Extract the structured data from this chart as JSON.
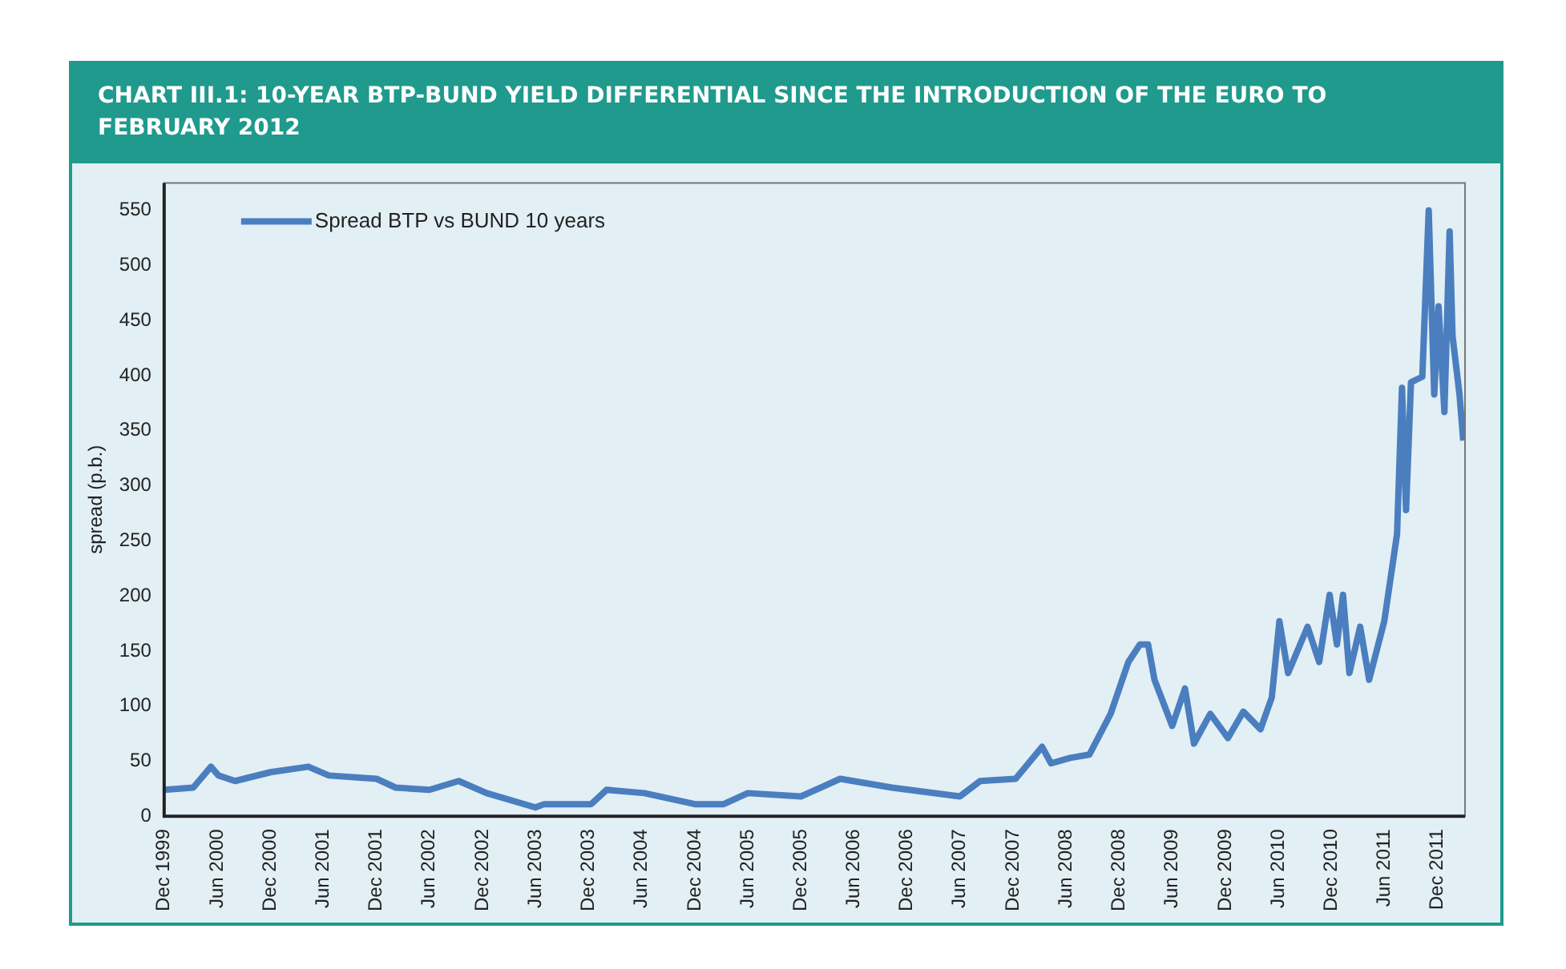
{
  "chart_data": {
    "type": "line",
    "title": "CHART III.1: 10-YEAR BTP-BUND YIELD DIFFERENTIAL SINCE THE INTRODUCTION OF THE EURO TO FEBRUARY 2012",
    "ylabel": "spread (p.b.)",
    "legend": "top left",
    "marker": "none",
    "xlim": [
      "1999-12-01",
      "2012-03-05"
    ],
    "ylim": [
      0,
      575
    ],
    "yticks": [
      0,
      50,
      100,
      150,
      200,
      250,
      300,
      350,
      400,
      450,
      500,
      550
    ],
    "xticks": [
      {
        "value": "1999-12-01",
        "label": "Dec 1999"
      },
      {
        "value": "2000-06-01",
        "label": "Jun 2000"
      },
      {
        "value": "2000-12-01",
        "label": "Dec 2000"
      },
      {
        "value": "2001-06-01",
        "label": "Jun 2001"
      },
      {
        "value": "2001-12-01",
        "label": "Dec 2001"
      },
      {
        "value": "2002-06-01",
        "label": "Jun 2002"
      },
      {
        "value": "2002-12-01",
        "label": "Dec 2002"
      },
      {
        "value": "2003-06-01",
        "label": "Jun 2003"
      },
      {
        "value": "2003-12-01",
        "label": "Dec 2003"
      },
      {
        "value": "2004-06-01",
        "label": "Jun 2004"
      },
      {
        "value": "2004-12-01",
        "label": "Dec 2004"
      },
      {
        "value": "2005-06-01",
        "label": "Jun 2005"
      },
      {
        "value": "2005-12-01",
        "label": "Dec 2005"
      },
      {
        "value": "2006-06-01",
        "label": "Jun 2006"
      },
      {
        "value": "2006-12-01",
        "label": "Dec 2006"
      },
      {
        "value": "2007-06-01",
        "label": "Jun 2007"
      },
      {
        "value": "2007-12-01",
        "label": "Dec 2007"
      },
      {
        "value": "2008-06-01",
        "label": "Jun 2008"
      },
      {
        "value": "2008-12-01",
        "label": "Dec 2008"
      },
      {
        "value": "2009-06-01",
        "label": "Jun 2009"
      },
      {
        "value": "2009-12-01",
        "label": "Dec 2009"
      },
      {
        "value": "2010-06-01",
        "label": "Jun 2010"
      },
      {
        "value": "2010-12-01",
        "label": "Dec 2010"
      },
      {
        "value": "2011-06-01",
        "label": "Jun 2011"
      },
      {
        "value": "2011-12-01",
        "label": "Dec 2011"
      }
    ],
    "series": [
      {
        "name": "Spread BTP vs BUND 10 years",
        "color": "#4a7ebf",
        "x": [
          "1999-12-01",
          "2000-03-10",
          "2000-05-10",
          "2000-06-05",
          "2000-08-01",
          "2000-12-01",
          "2001-04-10",
          "2001-06-20",
          "2001-12-01",
          "2002-02-05",
          "2002-06-01",
          "2002-09-10",
          "2002-12-15",
          "2003-06-01",
          "2003-07-01",
          "2003-12-10",
          "2004-02-01",
          "2004-06-10",
          "2004-12-01",
          "2005-03-10",
          "2005-06-01",
          "2005-12-01",
          "2006-04-15",
          "2006-10-10",
          "2007-06-01",
          "2007-08-10",
          "2007-12-10",
          "2008-03-10",
          "2008-04-10",
          "2008-06-15",
          "2008-08-20",
          "2008-11-01",
          "2009-01-01",
          "2009-02-10",
          "2009-03-10",
          "2009-04-01",
          "2009-06-01",
          "2009-07-15",
          "2009-08-15",
          "2009-10-10",
          "2009-12-10",
          "2010-02-01",
          "2010-04-01",
          "2010-05-10",
          "2010-06-05",
          "2010-07-05",
          "2010-09-10",
          "2010-10-20",
          "2010-11-25",
          "2010-12-20",
          "2011-01-10",
          "2011-02-01",
          "2011-03-10",
          "2011-04-10",
          "2011-06-01",
          "2011-07-15",
          "2011-08-01",
          "2011-08-15",
          "2011-09-01",
          "2011-10-10",
          "2011-11-01",
          "2011-11-20",
          "2011-12-05",
          "2011-12-25",
          "2012-01-12",
          "2012-01-22",
          "2012-02-15",
          "2012-02-28"
        ],
        "values": [
          24,
          26,
          45,
          37,
          32,
          40,
          45,
          37,
          34,
          26,
          24,
          32,
          21,
          8,
          11,
          11,
          24,
          21,
          11,
          11,
          21,
          18,
          34,
          26,
          18,
          32,
          34,
          63,
          48,
          53,
          56,
          93,
          140,
          156,
          156,
          124,
          82,
          116,
          66,
          93,
          71,
          95,
          79,
          108,
          177,
          130,
          172,
          140,
          201,
          156,
          201,
          130,
          172,
          124,
          177,
          256,
          389,
          278,
          394,
          399,
          550,
          383,
          463,
          367,
          531,
          436,
          383,
          341
        ]
      }
    ]
  }
}
